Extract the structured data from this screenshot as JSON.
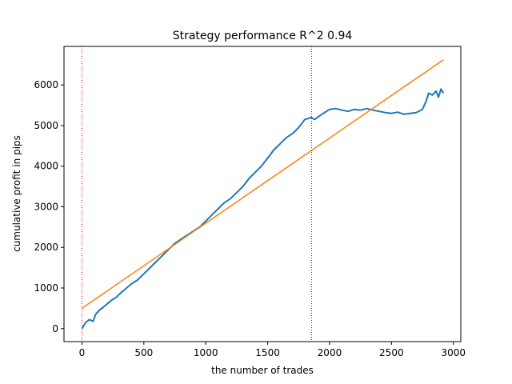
{
  "chart_data": {
    "type": "line",
    "title": "Strategy performance R^2 0.94",
    "xlabel": "the number of trades",
    "ylabel": "cumulative profit in pips",
    "xlim": [
      -145,
      3060
    ],
    "ylim": [
      -320,
      6950
    ],
    "xticks": [
      0,
      500,
      1000,
      1500,
      2000,
      2500,
      3000
    ],
    "yticks": [
      0,
      1000,
      2000,
      3000,
      4000,
      5000,
      6000
    ],
    "grid": false,
    "legend": "none",
    "series": [
      {
        "color": "#1f77b4",
        "x": [
          0,
          30,
          60,
          90,
          110,
          140,
          170,
          200,
          240,
          280,
          320,
          360,
          400,
          450,
          500,
          550,
          600,
          650,
          700,
          750,
          800,
          850,
          900,
          950,
          1000,
          1050,
          1100,
          1150,
          1200,
          1250,
          1300,
          1350,
          1400,
          1450,
          1500,
          1550,
          1600,
          1650,
          1700,
          1750,
          1800,
          1850,
          1880,
          1900,
          1950,
          2000,
          2050,
          2100,
          2150,
          2200,
          2250,
          2300,
          2350,
          2400,
          2450,
          2500,
          2550,
          2600,
          2650,
          2700,
          2750,
          2780,
          2800,
          2830,
          2860,
          2880,
          2900,
          2920
        ],
        "y": [
          0,
          150,
          220,
          180,
          350,
          450,
          520,
          600,
          700,
          780,
          900,
          1000,
          1100,
          1200,
          1350,
          1500,
          1650,
          1800,
          1950,
          2100,
          2200,
          2300,
          2400,
          2500,
          2650,
          2800,
          2950,
          3100,
          3200,
          3350,
          3500,
          3700,
          3850,
          4000,
          4200,
          4400,
          4550,
          4700,
          4800,
          4950,
          5150,
          5200,
          5150,
          5200,
          5300,
          5400,
          5420,
          5380,
          5350,
          5400,
          5380,
          5420,
          5380,
          5350,
          5320,
          5300,
          5330,
          5280,
          5300,
          5320,
          5400,
          5600,
          5800,
          5750,
          5850,
          5700,
          5900,
          5800
        ]
      },
      {
        "color": "#ff7f0e",
        "x": [
          0,
          2920
        ],
        "y": [
          500,
          6620
        ]
      }
    ],
    "vlines": [
      {
        "x": 0,
        "color": "#ff0000",
        "style": "dotted"
      },
      {
        "x": 1855,
        "color": "#8b00c8",
        "style": "dotted"
      }
    ]
  }
}
